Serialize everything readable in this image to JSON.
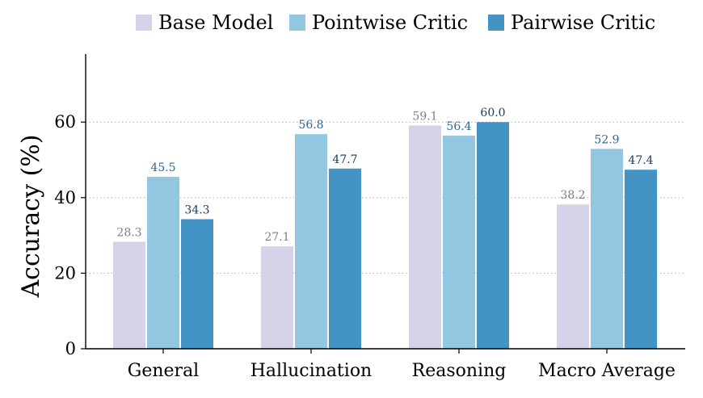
{
  "chart_data": {
    "type": "bar",
    "title": "",
    "xlabel": "",
    "ylabel": "Accuracy (%)",
    "ylim": [
      0,
      78
    ],
    "yticks": [
      0,
      20,
      40,
      60
    ],
    "grid": "horizontal dotted at y ticks",
    "legend_position": "top",
    "categories": [
      "General",
      "Hallucination",
      "Reasoning",
      "Macro Average"
    ],
    "series": [
      {
        "name": "Base Model",
        "color": "#d4d3e8",
        "label_color": "#7f7f7f",
        "values": [
          28.3,
          27.1,
          59.1,
          38.2
        ],
        "labels": [
          "28.3",
          "27.1",
          "59.1",
          "38.2"
        ]
      },
      {
        "name": "Pointwise Critic",
        "color": "#93c6e0",
        "label_color": "#2f6796",
        "values": [
          45.5,
          56.8,
          56.4,
          52.9
        ],
        "labels": [
          "45.5",
          "56.8",
          "56.4",
          "52.9"
        ]
      },
      {
        "name": "Pairwise Critic",
        "color": "#4393c4",
        "label_color": "#173f66",
        "values": [
          34.3,
          47.7,
          60.0,
          47.4
        ],
        "labels": [
          "34.3",
          "47.7",
          "60.0",
          "47.4"
        ]
      }
    ]
  }
}
